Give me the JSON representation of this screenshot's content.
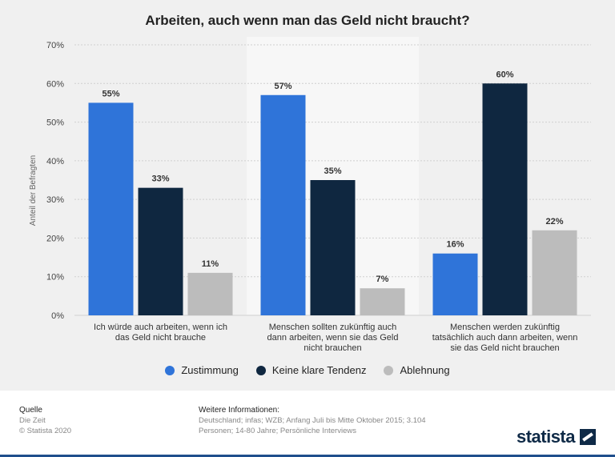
{
  "colors": {
    "zustimmung": "#2f74d9",
    "keine": "#0f2740",
    "ablehnung": "#bcbcbc",
    "grid": "#cfcfcf"
  },
  "chart_data": {
    "type": "bar",
    "title": "Arbeiten, auch wenn man das Geld nicht braucht?",
    "ylabel": "Anteil der Befragten",
    "ylim": [
      0,
      70
    ],
    "yticks": [
      "0%",
      "10%",
      "20%",
      "30%",
      "40%",
      "50%",
      "60%",
      "70%"
    ],
    "categories": [
      [
        "Ich würde auch arbeiten, wenn ich",
        "das Geld nicht brauche"
      ],
      [
        "Menschen sollten zukünftig auch",
        "dann arbeiten, wenn sie das Geld",
        "nicht brauchen"
      ],
      [
        "Menschen werden zukünftig",
        "tatsächlich auch dann arbeiten, wenn",
        "sie das Geld nicht brauchen"
      ]
    ],
    "series": [
      {
        "name": "Zustimmung",
        "values": [
          55,
          57,
          16
        ],
        "labels": [
          "55%",
          "57%",
          "16%"
        ]
      },
      {
        "name": "Keine klare Tendenz",
        "values": [
          33,
          35,
          60
        ],
        "labels": [
          "33%",
          "35%",
          "60%"
        ]
      },
      {
        "name": "Ablehnung",
        "values": [
          11,
          7,
          22
        ],
        "labels": [
          "11%",
          "7%",
          "22%"
        ]
      }
    ]
  },
  "footer": {
    "source_title": "Quelle",
    "source_line1": "Die Zeit",
    "source_line2": "© Statista 2020",
    "info_title": "Weitere Informationen:",
    "info_text": "Deutschland; infas; WZB; Anfang Juli bis Mitte Oktober 2015; 3.104 Personen; 14-80 Jahre; Persönliche Interviews",
    "logo": "statista"
  }
}
